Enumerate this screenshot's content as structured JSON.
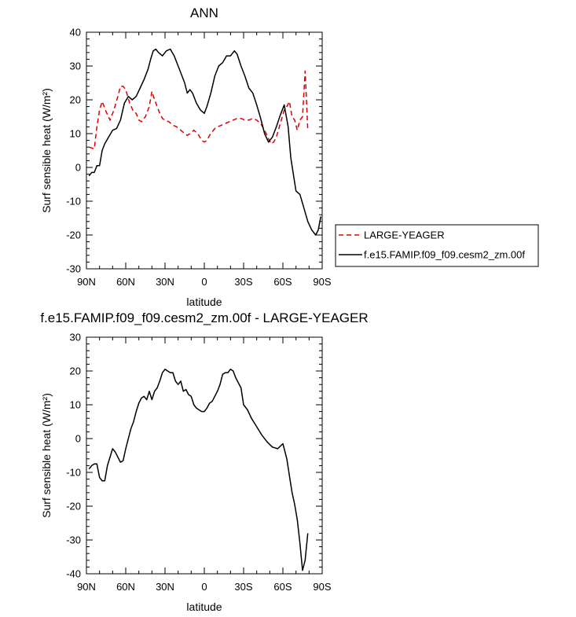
{
  "chart_data": [
    {
      "type": "line",
      "title": "ANN",
      "xlabel": "latitude",
      "ylabel": "Surf sensible heat (W/m²)",
      "xlim": [
        90,
        -90
      ],
      "ylim": [
        -30,
        40
      ],
      "x_tick_values": [
        90,
        60,
        30,
        0,
        -30,
        -60,
        -90
      ],
      "x_tick_labels": [
        "90N",
        "60N",
        "30N",
        "0",
        "30S",
        "60S",
        "90S"
      ],
      "y_tick_values": [
        -30,
        -20,
        -10,
        0,
        10,
        20,
        30,
        40
      ],
      "y_tick_labels": [
        "-30",
        "-20",
        "-10",
        "0",
        "10",
        "20",
        "30",
        "40"
      ],
      "legend": {
        "placement": "right",
        "entries": [
          "LARGE-YEAGER",
          "f.e15.FAMIP.f09_f09.cesm2_zm.00f"
        ]
      },
      "series": [
        {
          "name": "LARGE-YEAGER",
          "color": "#dd0000",
          "dash": true,
          "x": [
            88,
            84,
            82,
            80,
            78,
            75,
            72,
            69,
            66,
            64,
            62,
            60,
            57,
            54,
            52,
            50,
            48,
            45,
            42,
            40,
            38,
            36,
            34,
            32,
            30,
            27,
            24,
            21,
            18,
            15,
            13,
            11,
            8,
            5,
            2,
            0,
            -2,
            -4,
            -6,
            -8,
            -10,
            -13,
            -16,
            -19,
            -22,
            -25,
            -28,
            -31,
            -34,
            -37,
            -40,
            -43,
            -46,
            -49,
            -51,
            -53,
            -55,
            -58,
            -61,
            -63,
            -65,
            -67,
            -69,
            -71,
            -73,
            -75,
            -77,
            -79
          ],
          "y": [
            6,
            5.5,
            12,
            17,
            19.5,
            16.5,
            14,
            17,
            21,
            24,
            24,
            23,
            19,
            16.5,
            16,
            14,
            13.5,
            15,
            18,
            22.5,
            20,
            18,
            16,
            14.5,
            14,
            13.5,
            12.5,
            12,
            11,
            10,
            9.5,
            10,
            11,
            10,
            8,
            7.5,
            8,
            9.5,
            10.5,
            11.5,
            12,
            12.5,
            13,
            13.5,
            14,
            14.5,
            14.5,
            14,
            14,
            14.5,
            14,
            13,
            11,
            8.5,
            7,
            7.5,
            9,
            13,
            17,
            18,
            19.5,
            15,
            14,
            11,
            14,
            15,
            28.5,
            11
          ]
        },
        {
          "name": "f.e15.FAMIP.f09_f09.cesm2_zm.00f",
          "color": "#000000",
          "dash": false,
          "x": [
            88,
            86,
            84,
            82,
            80,
            78,
            76,
            73,
            70,
            67,
            64,
            61,
            58,
            55,
            52,
            49,
            46,
            43,
            41,
            39,
            37,
            35,
            32,
            29,
            26,
            23,
            20,
            17,
            15,
            13,
            11,
            9,
            6,
            3,
            0,
            -2,
            -5,
            -8,
            -11,
            -14,
            -17,
            -20,
            -23,
            -25,
            -28,
            -31,
            -34,
            -37,
            -40,
            -43,
            -46,
            -49,
            -52,
            -55,
            -58,
            -61,
            -64,
            -66,
            -68,
            -70,
            -73,
            -76,
            -79,
            -82,
            -85,
            -87,
            -89
          ],
          "y": [
            -2.5,
            -1.5,
            -1.5,
            0.5,
            0.5,
            5,
            7,
            9,
            11,
            11.5,
            14,
            19,
            21,
            20,
            21,
            23.5,
            26,
            29,
            32,
            34.5,
            35,
            34,
            33,
            34.5,
            35,
            33,
            30,
            27,
            25,
            22,
            23,
            22,
            19,
            17,
            16,
            18,
            22,
            27,
            30,
            31,
            33,
            33,
            34.5,
            33.5,
            30,
            27,
            23.5,
            22,
            18.5,
            14.5,
            10,
            7.5,
            9,
            12,
            15.5,
            18.5,
            12,
            3,
            -2,
            -7,
            -8,
            -12,
            -16,
            -18.5,
            -20,
            -18.5,
            -14.5
          ]
        }
      ]
    },
    {
      "type": "line",
      "title": "f.e15.FAMIP.f09_f09.cesm2_zm.00f - LARGE-YEAGER",
      "xlabel": "latitude",
      "ylabel": "Surf sensible heat (W/m²)",
      "xlim": [
        90,
        -90
      ],
      "ylim": [
        -40,
        30
      ],
      "x_tick_values": [
        90,
        60,
        30,
        0,
        -30,
        -60,
        -90
      ],
      "x_tick_labels": [
        "90N",
        "60N",
        "30N",
        "0",
        "30S",
        "60S",
        "90S"
      ],
      "y_tick_values": [
        -40,
        -30,
        -20,
        -10,
        0,
        10,
        20,
        30
      ],
      "y_tick_labels": [
        "-40",
        "-30",
        "-20",
        "-10",
        "0",
        "10",
        "20",
        "30"
      ],
      "series": [
        {
          "name": "f.e15.FAMIP.f09_f09.cesm2_zm.00f - LARGE-YEAGER",
          "color": "#000000",
          "dash": false,
          "x": [
            88,
            86,
            84,
            82,
            80,
            78,
            76,
            74,
            72,
            70,
            68,
            66,
            64,
            62,
            60,
            58,
            56,
            54,
            52,
            50,
            48,
            46,
            44,
            42,
            40,
            38,
            36,
            34,
            32,
            30,
            28,
            26,
            24,
            22,
            20,
            18,
            16,
            14,
            12,
            10,
            8,
            6,
            4,
            2,
            0,
            -2,
            -4,
            -6,
            -8,
            -10,
            -12,
            -14,
            -16,
            -18,
            -20,
            -22,
            -24,
            -26,
            -28,
            -30,
            -33,
            -36,
            -40,
            -44,
            -48,
            -52,
            -56,
            -60,
            -63,
            -65,
            -67,
            -69,
            -71,
            -73,
            -75,
            -77,
            -79
          ],
          "y": [
            -9,
            -8,
            -7.5,
            -7.5,
            -11.5,
            -12.5,
            -12.5,
            -8,
            -5.5,
            -3,
            -4,
            -5.5,
            -7,
            -6.5,
            -3,
            0,
            3,
            5,
            8,
            10.5,
            12,
            12.5,
            11.5,
            14,
            11.5,
            14,
            15,
            17,
            19.5,
            20.5,
            20,
            19.5,
            19.5,
            17,
            16,
            17,
            14,
            14.5,
            13,
            12.5,
            10,
            9,
            8.5,
            8,
            8,
            9,
            10.5,
            11,
            12.5,
            14,
            16,
            19,
            19.5,
            19.5,
            20.5,
            20,
            18,
            16.5,
            15,
            10,
            8.5,
            6,
            3.5,
            1,
            -1,
            -2.5,
            -3,
            -1.5,
            -6,
            -11,
            -16,
            -19.5,
            -24,
            -31,
            -39,
            -36,
            -28
          ]
        }
      ]
    }
  ]
}
